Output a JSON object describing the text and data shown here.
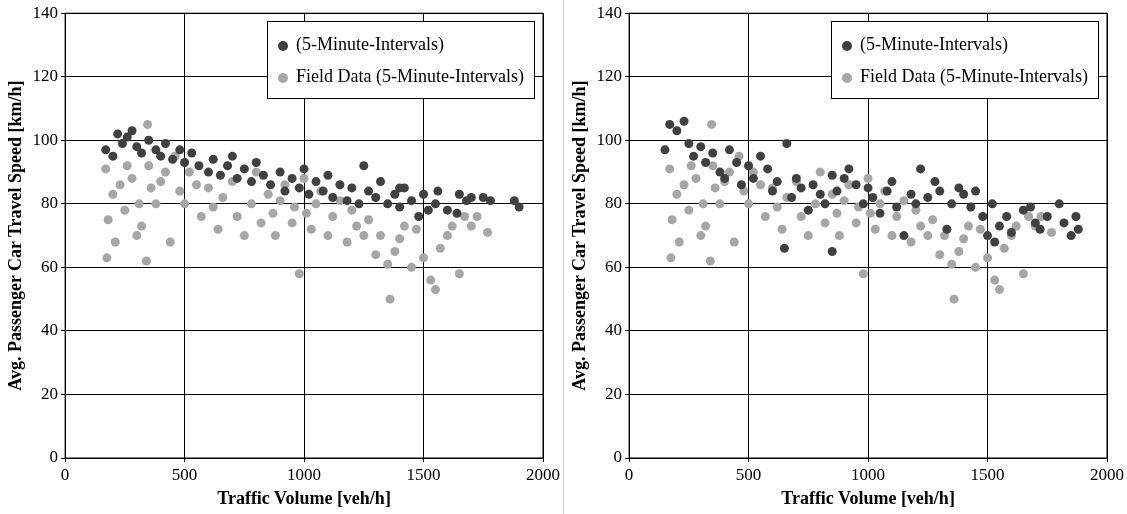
{
  "chart_data": [
    {
      "type": "scatter",
      "xlabel": "Traffic Volume [veh/h]",
      "ylabel": "Avg. Passenger Car Travel Speed [km/h]",
      "xlim": [
        0,
        2000
      ],
      "xticks": [
        0,
        500,
        1000,
        1500,
        2000
      ],
      "ylim": [
        0,
        140
      ],
      "yticks": [
        0,
        20,
        40,
        60,
        80,
        100,
        120,
        140
      ],
      "grid": true,
      "legend": "top right",
      "marker": "circle",
      "series": [
        {
          "name": "(5-Minute-Intervals)",
          "color": "#404040",
          "x": [
            170,
            200,
            220,
            240,
            260,
            280,
            300,
            320,
            350,
            380,
            400,
            420,
            450,
            480,
            500,
            530,
            560,
            600,
            620,
            650,
            680,
            700,
            720,
            750,
            780,
            800,
            830,
            860,
            900,
            920,
            950,
            980,
            1000,
            1020,
            1050,
            1080,
            1100,
            1120,
            1150,
            1180,
            1200,
            1230,
            1250,
            1270,
            1300,
            1320,
            1350,
            1380,
            1400,
            1420,
            1450,
            1480,
            1500,
            1520,
            1550,
            1600,
            1650,
            1680,
            1700,
            1750,
            1780,
            1880,
            1900,
            1400,
            1560,
            1640
          ],
          "values": [
            97,
            95,
            102,
            99,
            101,
            103,
            98,
            96,
            100,
            97,
            95,
            99,
            94,
            97,
            93,
            96,
            92,
            90,
            94,
            89,
            92,
            95,
            88,
            91,
            87,
            93,
            89,
            86,
            90,
            84,
            88,
            85,
            91,
            83,
            87,
            84,
            89,
            82,
            86,
            81,
            85,
            80,
            92,
            84,
            82,
            87,
            80,
            83,
            79,
            85,
            81,
            76,
            83,
            78,
            80,
            78,
            83,
            81,
            82,
            82,
            81,
            81,
            79,
            85,
            84,
            77
          ]
        },
        {
          "name": "Field Data (5-Minute-Intervals)",
          "color": "#a6a6a6",
          "x": [
            170,
            175,
            180,
            200,
            210,
            230,
            250,
            260,
            280,
            300,
            310,
            320,
            340,
            345,
            350,
            360,
            380,
            400,
            420,
            440,
            460,
            480,
            500,
            520,
            550,
            570,
            600,
            620,
            640,
            660,
            700,
            720,
            750,
            780,
            800,
            820,
            850,
            870,
            880,
            900,
            920,
            950,
            960,
            980,
            1000,
            1010,
            1030,
            1050,
            1070,
            1100,
            1120,
            1150,
            1180,
            1200,
            1220,
            1250,
            1270,
            1300,
            1320,
            1350,
            1360,
            1380,
            1400,
            1420,
            1450,
            1470,
            1500,
            1530,
            1550,
            1570,
            1600,
            1620,
            1650,
            1672,
            1700,
            1724,
            1768
          ],
          "values": [
            91,
            63,
            75,
            83,
            68,
            86,
            78,
            92,
            88,
            70,
            80,
            73,
            62,
            105,
            92,
            85,
            80,
            87,
            90,
            68,
            95,
            84,
            80,
            90,
            86,
            76,
            85,
            79,
            72,
            82,
            87,
            76,
            70,
            80,
            90,
            74,
            83,
            77,
            70,
            81,
            86,
            74,
            79,
            58,
            88,
            77,
            72,
            80,
            84,
            70,
            76,
            81,
            68,
            78,
            73,
            70,
            75,
            64,
            70,
            61,
            50,
            65,
            69,
            73,
            60,
            72,
            63,
            56,
            53,
            66,
            70,
            73,
            58,
            76,
            73,
            76,
            71
          ]
        }
      ]
    },
    {
      "type": "scatter",
      "xlabel": "Traffic Volume [veh/h]",
      "ylabel": "Avg. Passenger Car Travel Speed [km/h]",
      "xlim": [
        0,
        2000
      ],
      "xticks": [
        0,
        500,
        1000,
        1500,
        2000
      ],
      "ylim": [
        0,
        140
      ],
      "yticks": [
        0,
        20,
        40,
        60,
        80,
        100,
        120,
        140
      ],
      "grid": true,
      "legend": "top right",
      "marker": "circle",
      "series": [
        {
          "name": "(5-Minute-Intervals)",
          "color": "#404040",
          "x": [
            150,
            170,
            200,
            230,
            250,
            270,
            300,
            320,
            350,
            380,
            400,
            420,
            450,
            470,
            500,
            520,
            550,
            580,
            600,
            620,
            650,
            660,
            680,
            700,
            720,
            750,
            770,
            800,
            820,
            850,
            870,
            900,
            920,
            950,
            980,
            1000,
            1020,
            1050,
            1080,
            1100,
            1120,
            1150,
            1180,
            1200,
            1220,
            1250,
            1280,
            1300,
            1330,
            1350,
            1380,
            1400,
            1430,
            1450,
            1480,
            1500,
            1520,
            1550,
            1580,
            1600,
            1650,
            1680,
            1700,
            1720,
            1750,
            1800,
            1820,
            1850,
            1880,
            1870,
            850,
            1530
          ],
          "values": [
            97,
            105,
            103,
            106,
            99,
            95,
            98,
            93,
            96,
            90,
            88,
            97,
            93,
            86,
            92,
            88,
            95,
            91,
            84,
            87,
            66,
            99,
            82,
            88,
            85,
            78,
            86,
            83,
            80,
            89,
            84,
            88,
            91,
            86,
            80,
            85,
            82,
            77,
            84,
            87,
            79,
            70,
            83,
            80,
            91,
            82,
            87,
            84,
            72,
            80,
            85,
            83,
            79,
            84,
            76,
            70,
            80,
            73,
            76,
            71,
            78,
            79,
            74,
            72,
            76,
            80,
            74,
            70,
            72,
            76,
            65,
            68
          ]
        },
        {
          "name": "Field Data (5-Minute-Intervals)",
          "color": "#a6a6a6",
          "x": [
            170,
            175,
            180,
            200,
            210,
            230,
            250,
            260,
            280,
            300,
            310,
            320,
            340,
            345,
            350,
            360,
            380,
            400,
            420,
            440,
            460,
            480,
            500,
            520,
            550,
            570,
            600,
            620,
            640,
            660,
            700,
            720,
            750,
            780,
            800,
            820,
            850,
            870,
            880,
            900,
            920,
            950,
            960,
            980,
            1000,
            1010,
            1030,
            1050,
            1070,
            1100,
            1120,
            1150,
            1180,
            1200,
            1220,
            1250,
            1270,
            1300,
            1320,
            1350,
            1360,
            1380,
            1400,
            1420,
            1450,
            1470,
            1500,
            1530,
            1550,
            1570,
            1600,
            1620,
            1650,
            1672,
            1700,
            1724,
            1768
          ],
          "values": [
            91,
            63,
            75,
            83,
            68,
            86,
            78,
            92,
            88,
            70,
            80,
            73,
            62,
            105,
            92,
            85,
            80,
            87,
            90,
            68,
            95,
            84,
            80,
            90,
            86,
            76,
            85,
            79,
            72,
            82,
            87,
            76,
            70,
            80,
            90,
            74,
            83,
            77,
            70,
            81,
            86,
            74,
            79,
            58,
            88,
            77,
            72,
            80,
            84,
            70,
            76,
            81,
            68,
            78,
            73,
            70,
            75,
            64,
            70,
            61,
            50,
            65,
            69,
            73,
            60,
            72,
            63,
            56,
            53,
            66,
            70,
            73,
            58,
            76,
            73,
            76,
            71
          ]
        }
      ]
    }
  ]
}
